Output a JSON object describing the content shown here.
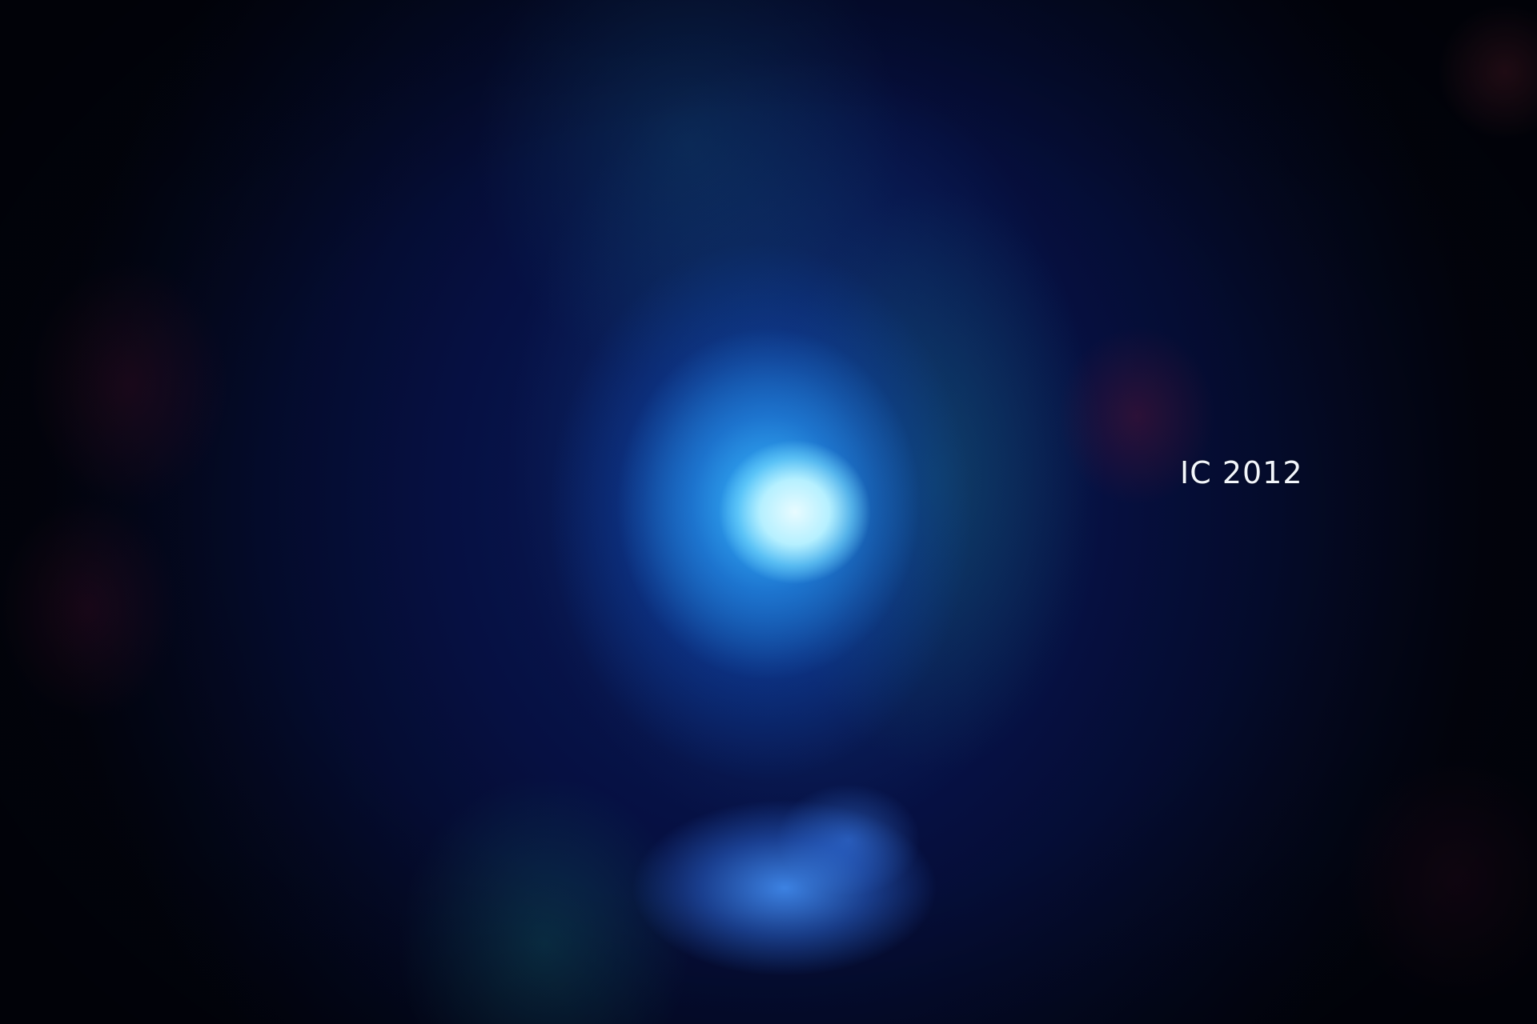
{
  "image": {
    "label": "IC 2012",
    "colors": {
      "background": "#03061a",
      "deep_blue": "#0a1d5e",
      "glow_blue": "#2896f0",
      "core_white": "#e8fbff",
      "label_text": "#f2f6fb"
    }
  }
}
